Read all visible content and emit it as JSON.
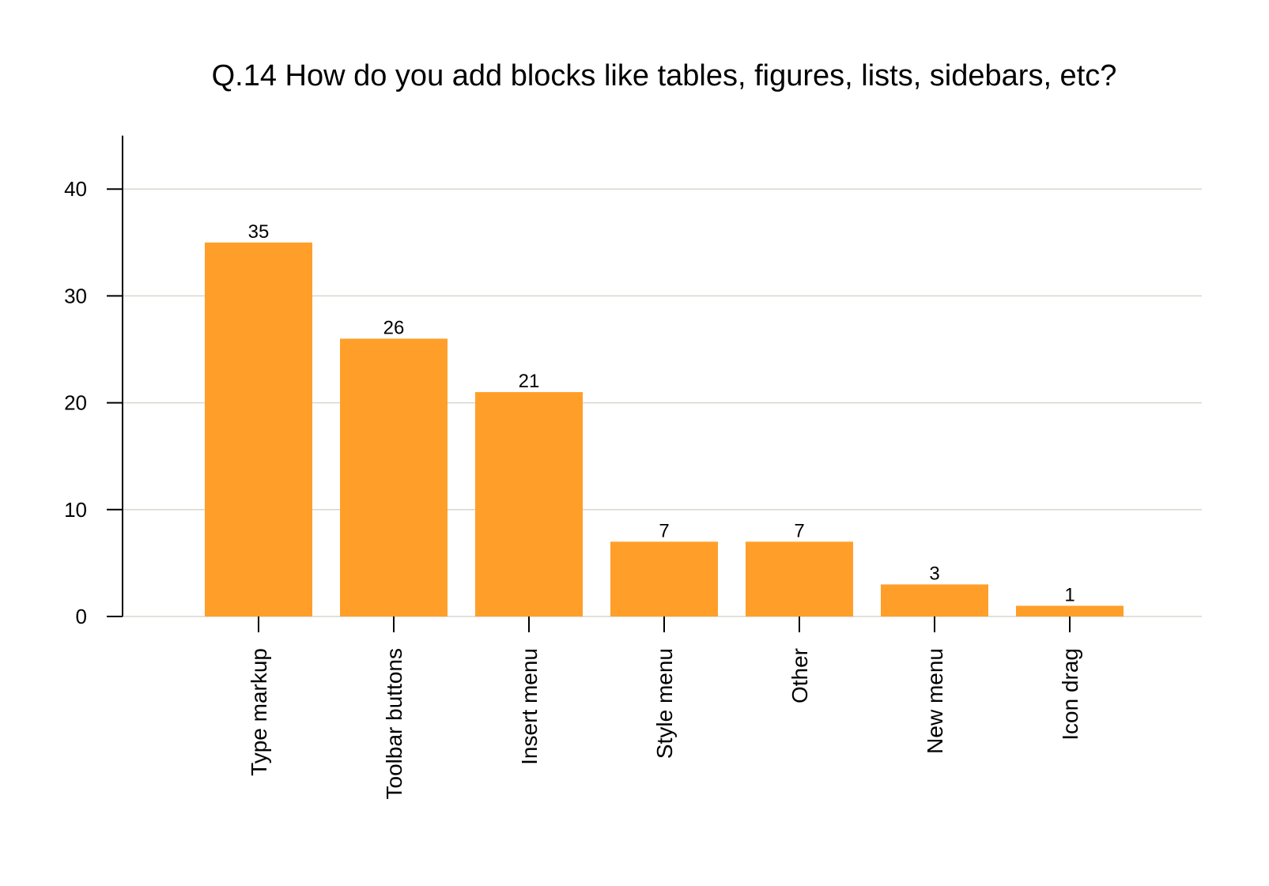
{
  "chart_data": {
    "type": "bar",
    "title": "Q.14 How do you add blocks like tables, figures, lists, sidebars, etc?",
    "xlabel": "",
    "ylabel": "",
    "categories": [
      "Type markup",
      "Toolbar buttons",
      "Insert menu",
      "Style menu",
      "Other",
      "New menu",
      "Icon drag"
    ],
    "values": [
      35,
      26,
      21,
      7,
      7,
      3,
      1
    ],
    "data_labels": [
      "35",
      "26",
      "21",
      "7",
      "7",
      "3",
      "1"
    ],
    "y_ticks": [
      0,
      10,
      20,
      30,
      40
    ],
    "y_tick_labels": [
      "0",
      "10",
      "20",
      "30",
      "40"
    ],
    "ylim": [
      0,
      45
    ],
    "grid": true,
    "legend": "none",
    "colors": {
      "bar": "#FF9F2A",
      "grid": "#D9D6CF",
      "axis": "#000000",
      "text": "#000000"
    }
  }
}
